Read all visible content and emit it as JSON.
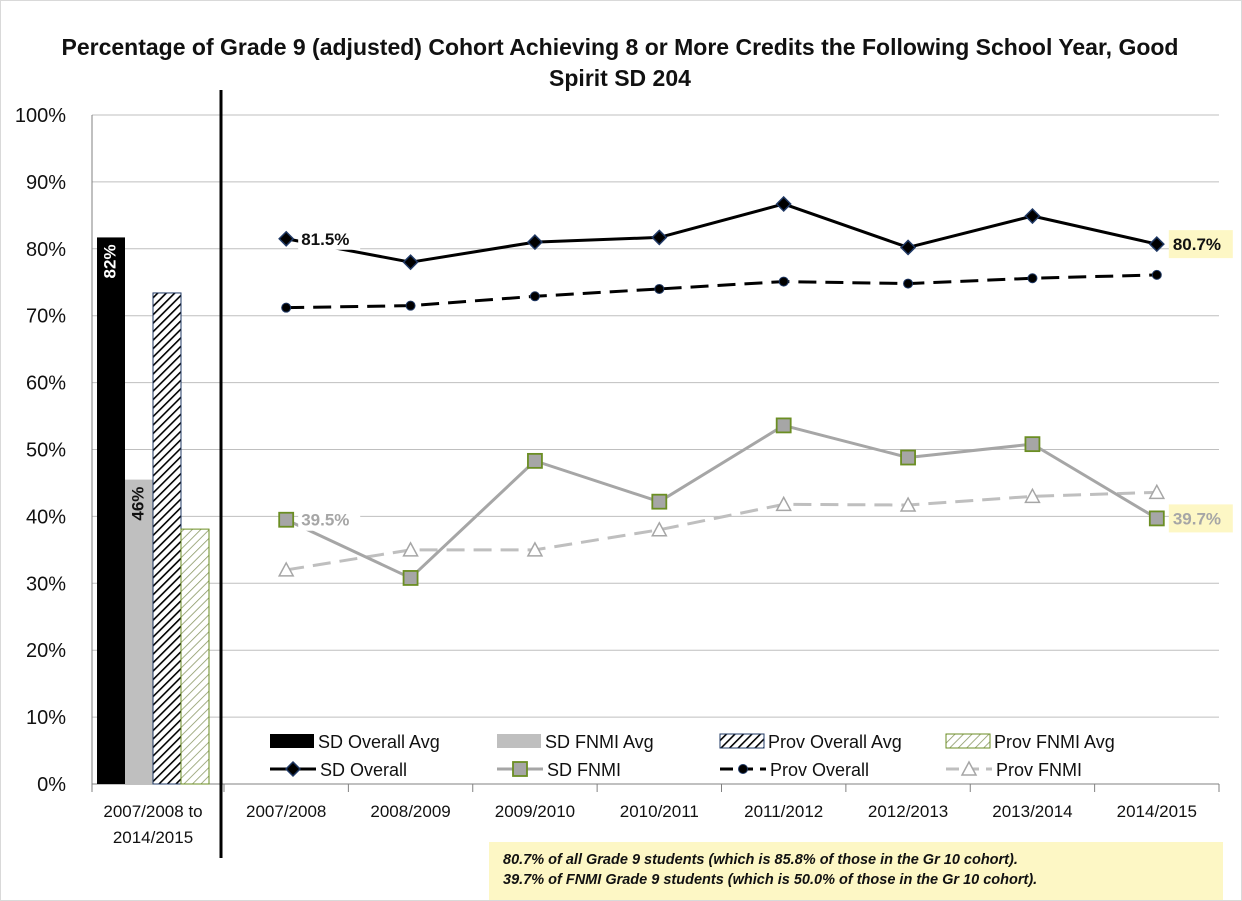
{
  "chart_data": {
    "type": "line",
    "title": "Percentage of Grade 9 (adjusted) Cohort Achieving 8 or More Credits the Following School Year, Good Spirit SD 204",
    "ylim": [
      0,
      100
    ],
    "y_ticks": [
      "0%",
      "10%",
      "20%",
      "30%",
      "40%",
      "50%",
      "60%",
      "70%",
      "80%",
      "90%",
      "100%"
    ],
    "grid": true,
    "legend_position": "bottom",
    "colors": {
      "sd_overall": "#000000",
      "sd_fnmi": "#a6a6a6",
      "prov_overall": "#000000",
      "prov_fnmi": "#bfbfbf",
      "marker_blue": "#1f3864",
      "marker_green": "#6b8e23",
      "highlight": "#fdf7c5"
    },
    "average_bars": {
      "category": "2007/2008 to 2014/2015",
      "bars": [
        {
          "name": "SD Overall Avg",
          "value": 81.7,
          "label": "82%"
        },
        {
          "name": "SD FNMI Avg",
          "value": 45.5,
          "label": "46%"
        },
        {
          "name": "Prov Overall Avg",
          "value": 73.4,
          "label": ""
        },
        {
          "name": "Prov FNMI Avg",
          "value": 38.1,
          "label": ""
        }
      ]
    },
    "categories": [
      "2007/2008",
      "2008/2009",
      "2009/2010",
      "2010/2011",
      "2011/2012",
      "2012/2013",
      "2013/2014",
      "2014/2015"
    ],
    "series": [
      {
        "name": "SD Overall",
        "values": [
          81.5,
          78.0,
          81.0,
          81.7,
          86.7,
          80.2,
          84.9,
          80.7
        ],
        "labels": {
          "0": "81.5%",
          "7": "80.7%"
        }
      },
      {
        "name": "SD FNMI",
        "values": [
          39.5,
          30.8,
          48.3,
          42.2,
          53.6,
          48.8,
          50.8,
          39.7
        ],
        "labels": {
          "0": "39.5%",
          "7": "39.7%"
        }
      },
      {
        "name": "Prov Overall",
        "values": [
          71.2,
          71.5,
          72.9,
          74.0,
          75.1,
          74.8,
          75.6,
          76.1
        ]
      },
      {
        "name": "Prov FNMI",
        "values": [
          32.0,
          35.0,
          35.0,
          38.0,
          41.8,
          41.7,
          43.0,
          43.6
        ]
      }
    ],
    "footnote": [
      "80.7% of all Grade 9 students (which is 85.8% of those in the Gr 10 cohort).",
      "39.7% of FNMI Grade 9 students (which is 50.0% of those in the Gr 10 cohort)."
    ]
  }
}
